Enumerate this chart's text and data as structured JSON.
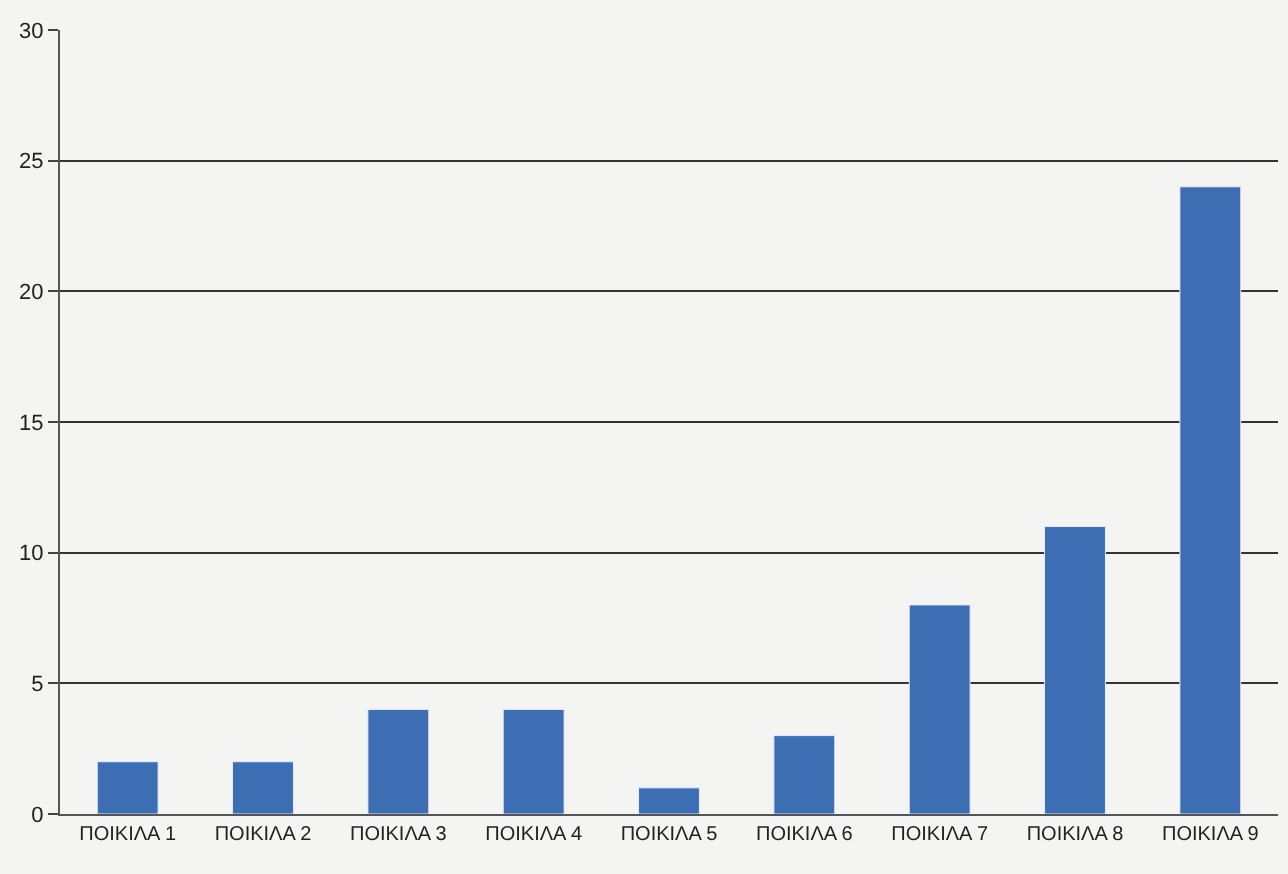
{
  "chart_data": {
    "type": "bar",
    "categories": [
      "ΠΟΙΚΙΛΑ 1",
      "ΠΟΙΚΙΛΑ 2",
      "ΠΟΙΚΙΛΑ 3",
      "ΠΟΙΚΙΛΑ 4",
      "ΠΟΙΚΙΛΑ 5",
      "ΠΟΙΚΙΛΑ 6",
      "ΠΟΙΚΙΛΑ 7",
      "ΠΟΙΚΙΛΑ 8",
      "ΠΟΙΚΙΛΑ 9"
    ],
    "values": [
      2,
      2,
      4,
      4,
      1,
      3,
      8,
      11,
      24
    ],
    "color": "#3d6db3",
    "ylim": [
      0,
      30
    ],
    "yticks": [
      0,
      5,
      10,
      15,
      20,
      25,
      30
    ],
    "grid": "y"
  }
}
